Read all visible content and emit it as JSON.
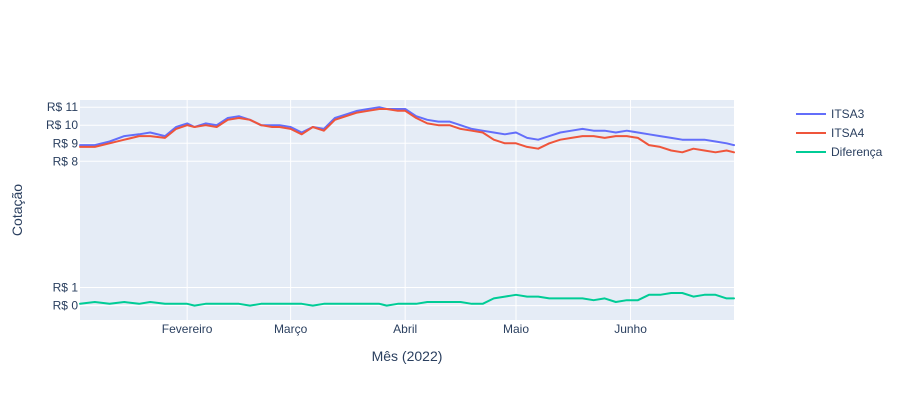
{
  "chart_data": {
    "type": "line",
    "xlabel": "Mês (2022)",
    "ylabel": "Cotação",
    "xlim": [
      3,
      180
    ],
    "ylim": [
      -0.8,
      11.4
    ],
    "grid": true,
    "legend_position": "top-right",
    "x_ticks": [
      {
        "x": 32,
        "label": "Fevereiro"
      },
      {
        "x": 60,
        "label": "Março"
      },
      {
        "x": 91,
        "label": "Abril"
      },
      {
        "x": 121,
        "label": "Maio"
      },
      {
        "x": 152,
        "label": "Junho"
      }
    ],
    "y_ticks": [
      {
        "y": 0,
        "label": "R$ 0"
      },
      {
        "y": 1,
        "label": "R$ 1"
      },
      {
        "y": 8,
        "label": "R$ 8"
      },
      {
        "y": 9,
        "label": "R$ 9"
      },
      {
        "y": 10,
        "label": "R$ 10"
      },
      {
        "y": 11,
        "label": "R$ 11"
      }
    ],
    "x": [
      3,
      7,
      11,
      15,
      19,
      22,
      26,
      29,
      32,
      34,
      37,
      40,
      43,
      46,
      49,
      52,
      55,
      57,
      60,
      63,
      66,
      69,
      72,
      75,
      78,
      81,
      84,
      86,
      89,
      91,
      94,
      97,
      100,
      103,
      106,
      109,
      112,
      115,
      118,
      121,
      124,
      127,
      130,
      133,
      136,
      139,
      142,
      145,
      148,
      151,
      154,
      157,
      160,
      163,
      166,
      169,
      172,
      175,
      178,
      180
    ],
    "series": [
      {
        "name": "ITSA3",
        "color": "#636efa",
        "values": [
          8.9,
          8.9,
          9.1,
          9.4,
          9.5,
          9.6,
          9.4,
          9.9,
          10.1,
          9.9,
          10.1,
          10.0,
          10.4,
          10.5,
          10.3,
          10.0,
          10.0,
          10.0,
          9.9,
          9.6,
          9.9,
          9.8,
          10.4,
          10.6,
          10.8,
          10.9,
          11.0,
          10.9,
          10.9,
          10.9,
          10.5,
          10.3,
          10.2,
          10.2,
          10.0,
          9.8,
          9.7,
          9.6,
          9.5,
          9.6,
          9.3,
          9.2,
          9.4,
          9.6,
          9.7,
          9.8,
          9.7,
          9.7,
          9.6,
          9.7,
          9.6,
          9.5,
          9.4,
          9.3,
          9.2,
          9.2,
          9.2,
          9.1,
          9.0,
          8.9
        ]
      },
      {
        "name": "ITSA4",
        "color": "#ef553b",
        "values": [
          8.8,
          8.8,
          9.0,
          9.2,
          9.4,
          9.4,
          9.3,
          9.8,
          10.0,
          9.9,
          10.0,
          9.9,
          10.3,
          10.4,
          10.3,
          10.0,
          9.9,
          9.9,
          9.8,
          9.5,
          9.9,
          9.7,
          10.3,
          10.5,
          10.7,
          10.8,
          10.9,
          10.9,
          10.8,
          10.8,
          10.4,
          10.1,
          10.0,
          10.0,
          9.8,
          9.7,
          9.6,
          9.2,
          9.0,
          9.0,
          8.8,
          8.7,
          9.0,
          9.2,
          9.3,
          9.4,
          9.4,
          9.3,
          9.4,
          9.4,
          9.3,
          8.9,
          8.8,
          8.6,
          8.5,
          8.7,
          8.6,
          8.5,
          8.6,
          8.5
        ]
      },
      {
        "name": "Diferença",
        "color": "#00cc96",
        "values": [
          0.1,
          0.2,
          0.1,
          0.2,
          0.1,
          0.2,
          0.1,
          0.1,
          0.1,
          0.0,
          0.1,
          0.1,
          0.1,
          0.1,
          0.0,
          0.1,
          0.1,
          0.1,
          0.1,
          0.1,
          0.0,
          0.1,
          0.1,
          0.1,
          0.1,
          0.1,
          0.1,
          0.0,
          0.1,
          0.1,
          0.1,
          0.2,
          0.2,
          0.2,
          0.2,
          0.1,
          0.1,
          0.4,
          0.5,
          0.6,
          0.5,
          0.5,
          0.4,
          0.4,
          0.4,
          0.4,
          0.3,
          0.4,
          0.2,
          0.3,
          0.3,
          0.6,
          0.6,
          0.7,
          0.7,
          0.5,
          0.6,
          0.6,
          0.4,
          0.4
        ]
      }
    ]
  }
}
